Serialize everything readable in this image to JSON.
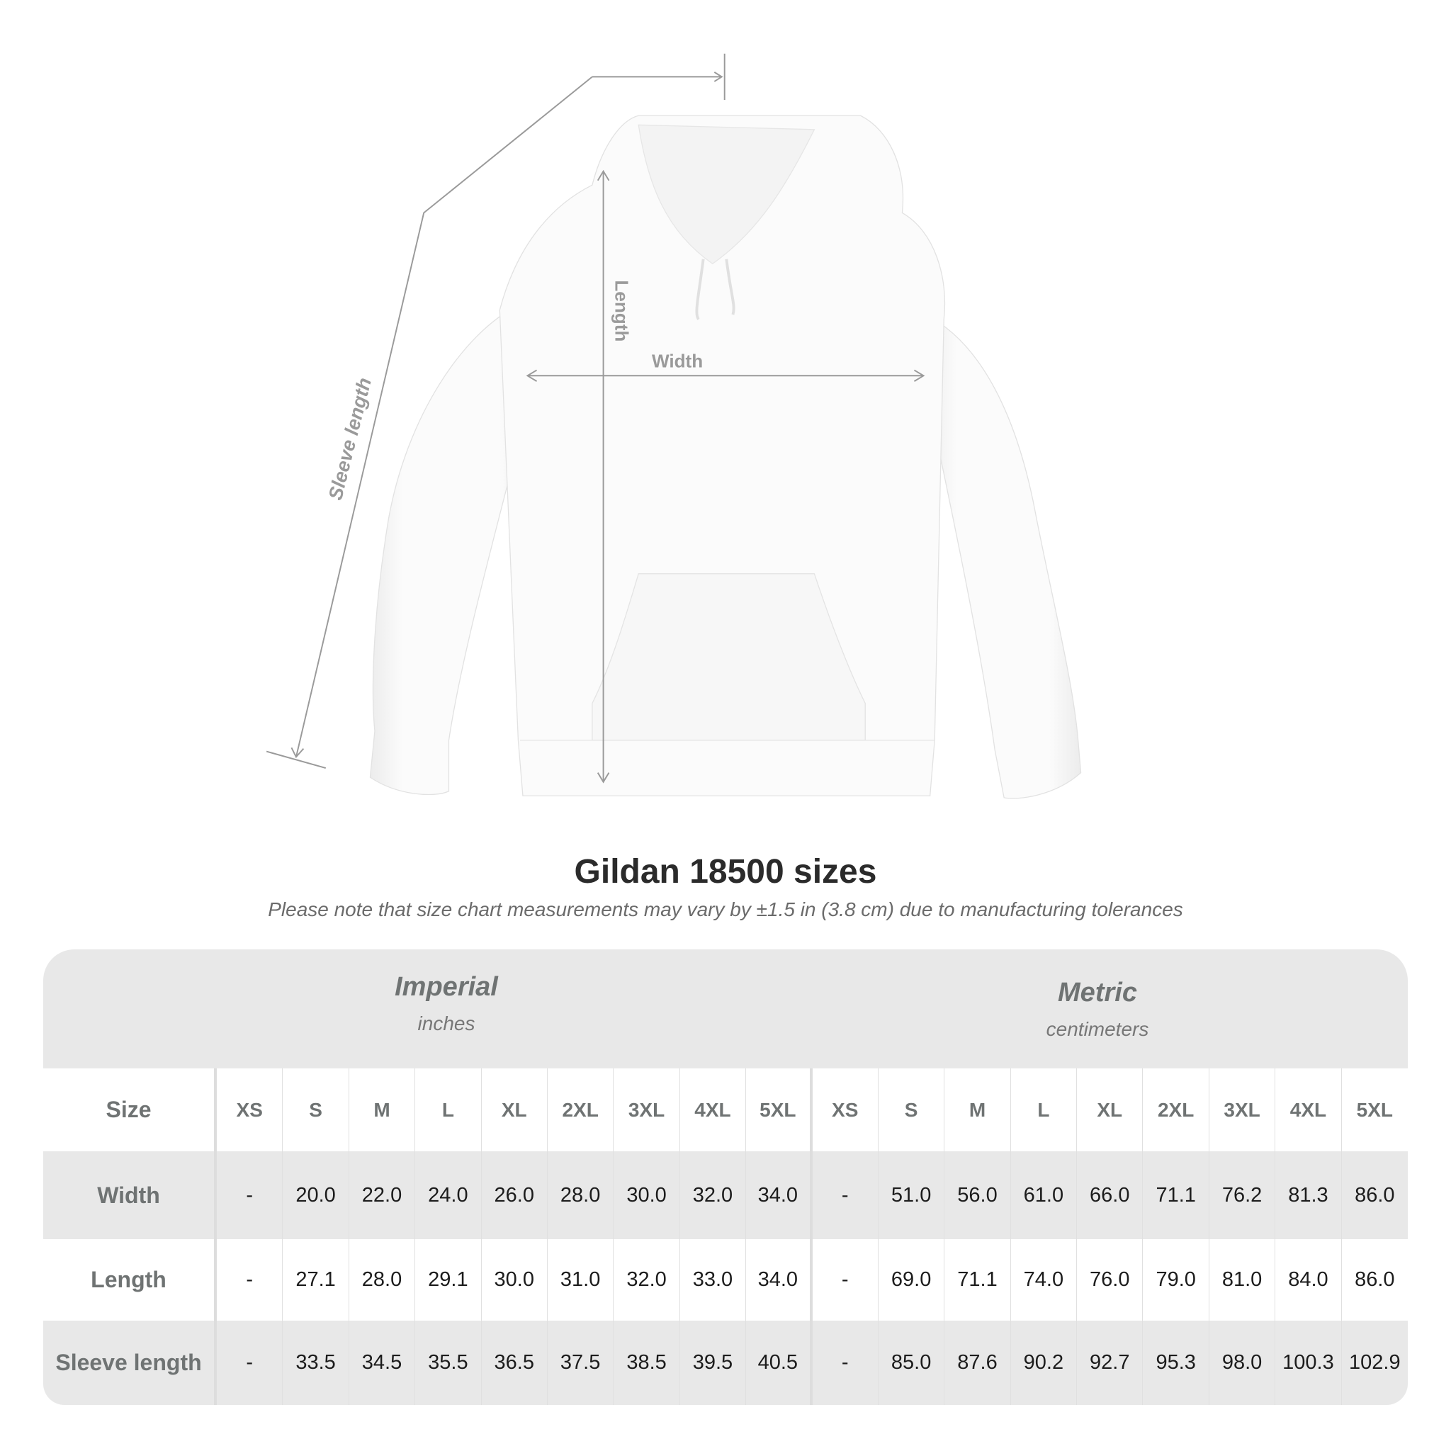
{
  "diagram": {
    "labels": {
      "sleeve": "Sleeve length",
      "length": "Length",
      "width": "Width"
    },
    "line_color": "#9a9a9a"
  },
  "title": "Gildan 18500 sizes",
  "note": "Please note that size chart measurements may vary by ±1.5 in (3.8 cm) due to manufacturing tolerances",
  "table": {
    "imperial": {
      "name": "Imperial",
      "unit": "inches"
    },
    "metric": {
      "name": "Metric",
      "unit": "centimeters"
    },
    "size_label": "Size",
    "sizes": [
      "XS",
      "S",
      "M",
      "L",
      "XL",
      "2XL",
      "3XL",
      "4XL",
      "5XL"
    ],
    "rows": [
      {
        "label": "Width",
        "imperial": [
          "-",
          "20.0",
          "22.0",
          "24.0",
          "26.0",
          "28.0",
          "30.0",
          "32.0",
          "34.0"
        ],
        "metric": [
          "-",
          "51.0",
          "56.0",
          "61.0",
          "66.0",
          "71.1",
          "76.2",
          "81.3",
          "86.0"
        ]
      },
      {
        "label": "Length",
        "imperial": [
          "-",
          "27.1",
          "28.0",
          "29.1",
          "30.0",
          "31.0",
          "32.0",
          "33.0",
          "34.0"
        ],
        "metric": [
          "-",
          "69.0",
          "71.1",
          "74.0",
          "76.0",
          "79.0",
          "81.0",
          "84.0",
          "86.0"
        ]
      },
      {
        "label": "Sleeve length",
        "imperial": [
          "-",
          "33.5",
          "34.5",
          "35.5",
          "36.5",
          "37.5",
          "38.5",
          "39.5",
          "40.5"
        ],
        "metric": [
          "-",
          "85.0",
          "87.6",
          "90.2",
          "92.7",
          "95.3",
          "98.0",
          "100.3",
          "102.9"
        ]
      }
    ]
  }
}
